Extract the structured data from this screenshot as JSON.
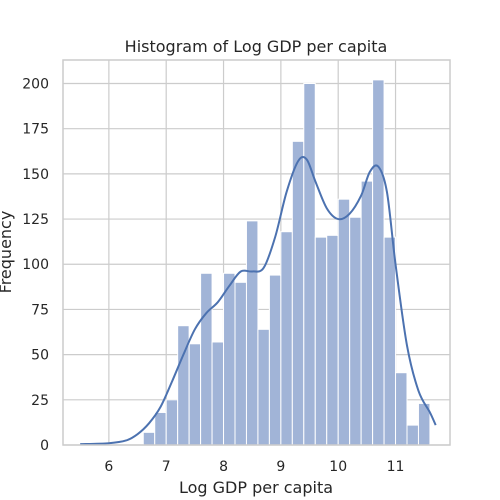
{
  "chart_data": {
    "type": "bar",
    "title": "Histogram of Log GDP per capita",
    "xlabel": "Log GDP per capita",
    "ylabel": "Frequency",
    "xlim": [
      5.2,
      11.95
    ],
    "ylim": [
      0,
      213
    ],
    "xticks": [
      6,
      7,
      8,
      9,
      10,
      11
    ],
    "yticks": [
      0,
      25,
      50,
      75,
      100,
      125,
      150,
      175,
      200
    ],
    "grid": true,
    "bar_color": "#a1b4d7",
    "bar_edge_color": "#ffffff",
    "kde_color": "#4c72b0",
    "bin_start": 6.6,
    "bin_width": 0.2,
    "values": [
      7,
      18,
      25,
      66,
      56,
      95,
      57,
      95,
      90,
      124,
      64,
      94,
      118,
      168,
      200,
      115,
      116,
      136,
      126,
      146,
      202,
      115,
      40,
      11,
      23
    ],
    "kde_curve": [
      [
        5.5,
        0.5
      ],
      [
        6.0,
        1
      ],
      [
        6.3,
        2.5
      ],
      [
        6.5,
        6
      ],
      [
        6.7,
        12
      ],
      [
        6.9,
        21
      ],
      [
        7.1,
        35
      ],
      [
        7.3,
        50
      ],
      [
        7.5,
        64
      ],
      [
        7.7,
        73
      ],
      [
        7.9,
        79
      ],
      [
        8.1,
        88
      ],
      [
        8.3,
        96
      ],
      [
        8.5,
        96
      ],
      [
        8.7,
        98
      ],
      [
        8.9,
        115
      ],
      [
        9.1,
        140
      ],
      [
        9.3,
        157
      ],
      [
        9.45,
        158
      ],
      [
        9.6,
        146
      ],
      [
        9.8,
        131
      ],
      [
        10.0,
        125
      ],
      [
        10.2,
        128
      ],
      [
        10.4,
        138
      ],
      [
        10.55,
        151
      ],
      [
        10.7,
        154
      ],
      [
        10.85,
        140
      ],
      [
        11.0,
        100
      ],
      [
        11.2,
        55
      ],
      [
        11.4,
        30
      ],
      [
        11.6,
        18
      ],
      [
        11.7,
        11
      ]
    ]
  }
}
